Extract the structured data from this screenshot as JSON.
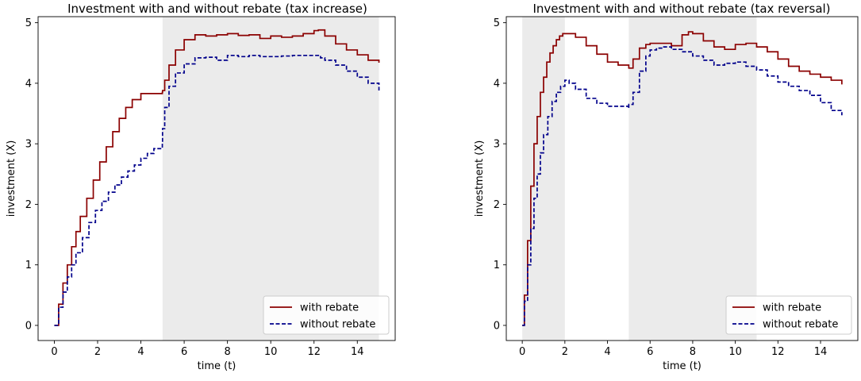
{
  "chart_data": [
    {
      "type": "line",
      "title": "Investment with and without rebate (tax increase)",
      "xlabel": "time (t)",
      "ylabel": "investment (X)",
      "xlim": [
        -0.75,
        15.75
      ],
      "ylim": [
        -0.25,
        5.1
      ],
      "xticks": [
        0,
        2,
        4,
        6,
        8,
        10,
        12,
        14
      ],
      "yticks": [
        0,
        1,
        2,
        3,
        4,
        5
      ],
      "grid": false,
      "legend_position": "lower right",
      "shaded_regions": [
        [
          5,
          15
        ]
      ],
      "series": [
        {
          "name": "with rebate",
          "style": "solid",
          "color": "#8b0000",
          "x": [
            0,
            0.2,
            0.4,
            0.6,
            0.8,
            1.0,
            1.2,
            1.5,
            1.8,
            2.1,
            2.4,
            2.7,
            3.0,
            3.3,
            3.6,
            4.0,
            4.5,
            4.99,
            5.0,
            5.1,
            5.3,
            5.6,
            6.0,
            6.5,
            7.0,
            7.5,
            8.0,
            8.5,
            9.0,
            9.5,
            10.0,
            10.5,
            11.0,
            11.5,
            12.0,
            12.2,
            12.5,
            13.0,
            13.5,
            14.0,
            14.5,
            15.0
          ],
          "y": [
            0,
            0.35,
            0.7,
            1.0,
            1.3,
            1.55,
            1.8,
            2.1,
            2.4,
            2.7,
            2.95,
            3.2,
            3.42,
            3.6,
            3.73,
            3.83,
            3.83,
            3.85,
            3.88,
            4.05,
            4.3,
            4.55,
            4.72,
            4.8,
            4.78,
            4.8,
            4.82,
            4.79,
            4.8,
            4.74,
            4.78,
            4.76,
            4.78,
            4.82,
            4.87,
            4.88,
            4.78,
            4.65,
            4.55,
            4.47,
            4.38,
            4.34
          ]
        },
        {
          "name": "without rebate",
          "style": "dashed",
          "color": "#00008b",
          "x": [
            0,
            0.2,
            0.4,
            0.6,
            0.8,
            1.0,
            1.3,
            1.6,
            1.9,
            2.2,
            2.5,
            2.8,
            3.1,
            3.4,
            3.7,
            4.0,
            4.3,
            4.6,
            4.99,
            5.0,
            5.1,
            5.3,
            5.6,
            6.0,
            6.5,
            7.0,
            7.5,
            8.0,
            8.5,
            9.0,
            9.5,
            10.0,
            10.5,
            11.0,
            11.5,
            12.0,
            12.3,
            12.5,
            13.0,
            13.5,
            14.0,
            14.5,
            15.0
          ],
          "y": [
            0,
            0.3,
            0.55,
            0.8,
            1.0,
            1.2,
            1.45,
            1.7,
            1.9,
            2.05,
            2.2,
            2.32,
            2.45,
            2.55,
            2.65,
            2.76,
            2.84,
            2.92,
            3.02,
            3.25,
            3.6,
            3.95,
            4.17,
            4.32,
            4.42,
            4.43,
            4.38,
            4.46,
            4.44,
            4.46,
            4.44,
            4.44,
            4.45,
            4.46,
            4.46,
            4.46,
            4.42,
            4.38,
            4.3,
            4.2,
            4.1,
            4.0,
            3.88
          ]
        }
      ],
      "legend": [
        {
          "label": "with rebate",
          "color": "#8b0000",
          "style": "solid"
        },
        {
          "label": "without rebate",
          "color": "#00008b",
          "style": "dashed"
        }
      ]
    },
    {
      "type": "line",
      "title": "Investment with and without rebate (tax reversal)",
      "xlabel": "time (t)",
      "ylabel": "investment (X)",
      "xlim": [
        -0.75,
        15.75
      ],
      "ylim": [
        -0.25,
        5.1
      ],
      "xticks": [
        0,
        2,
        4,
        6,
        8,
        10,
        12,
        14
      ],
      "yticks": [
        0,
        1,
        2,
        3,
        4,
        5
      ],
      "grid": false,
      "legend_position": "lower right",
      "shaded_regions": [
        [
          0,
          2
        ],
        [
          5,
          11
        ]
      ],
      "series": [
        {
          "name": "with rebate",
          "style": "solid",
          "color": "#8b0000",
          "x": [
            0,
            0.1,
            0.25,
            0.4,
            0.55,
            0.7,
            0.85,
            1.0,
            1.15,
            1.3,
            1.45,
            1.6,
            1.75,
            1.9,
            2.0,
            2.2,
            2.5,
            3.0,
            3.5,
            4.0,
            4.5,
            5.0,
            5.2,
            5.5,
            5.8,
            6.0,
            6.5,
            7.0,
            7.5,
            7.8,
            8.0,
            8.5,
            9.0,
            9.5,
            10.0,
            10.5,
            11.0,
            11.5,
            12.0,
            12.5,
            13.0,
            13.5,
            14.0,
            14.5,
            15.0
          ],
          "y": [
            0,
            0.5,
            1.4,
            2.3,
            3.0,
            3.45,
            3.85,
            4.1,
            4.35,
            4.5,
            4.62,
            4.72,
            4.78,
            4.82,
            4.82,
            4.82,
            4.76,
            4.62,
            4.48,
            4.35,
            4.3,
            4.25,
            4.4,
            4.58,
            4.64,
            4.66,
            4.66,
            4.62,
            4.8,
            4.85,
            4.82,
            4.7,
            4.6,
            4.56,
            4.64,
            4.66,
            4.6,
            4.52,
            4.4,
            4.28,
            4.2,
            4.15,
            4.1,
            4.05,
            3.98
          ]
        },
        {
          "name": "without rebate",
          "style": "dashed",
          "color": "#00008b",
          "x": [
            0,
            0.1,
            0.25,
            0.4,
            0.55,
            0.7,
            0.85,
            1.0,
            1.2,
            1.4,
            1.6,
            1.8,
            2.0,
            2.2,
            2.5,
            3.0,
            3.5,
            4.0,
            4.5,
            4.99,
            5.0,
            5.2,
            5.5,
            5.8,
            6.0,
            6.3,
            6.6,
            7.0,
            7.5,
            8.0,
            8.5,
            9.0,
            9.5,
            10.0,
            10.5,
            11.0,
            11.5,
            12.0,
            12.5,
            13.0,
            13.5,
            14.0,
            14.5,
            15.0
          ],
          "y": [
            0,
            0.4,
            1.0,
            1.6,
            2.1,
            2.5,
            2.85,
            3.15,
            3.45,
            3.7,
            3.85,
            3.95,
            4.05,
            4.0,
            3.9,
            3.75,
            3.67,
            3.62,
            3.62,
            3.58,
            3.65,
            3.85,
            4.2,
            4.45,
            4.55,
            4.58,
            4.6,
            4.56,
            4.52,
            4.45,
            4.38,
            4.3,
            4.33,
            4.35,
            4.28,
            4.22,
            4.12,
            4.02,
            3.95,
            3.88,
            3.8,
            3.68,
            3.55,
            3.47
          ]
        }
      ],
      "legend": [
        {
          "label": "with rebate",
          "color": "#8b0000",
          "style": "solid"
        },
        {
          "label": "without rebate",
          "color": "#00008b",
          "style": "dashed"
        }
      ]
    }
  ]
}
